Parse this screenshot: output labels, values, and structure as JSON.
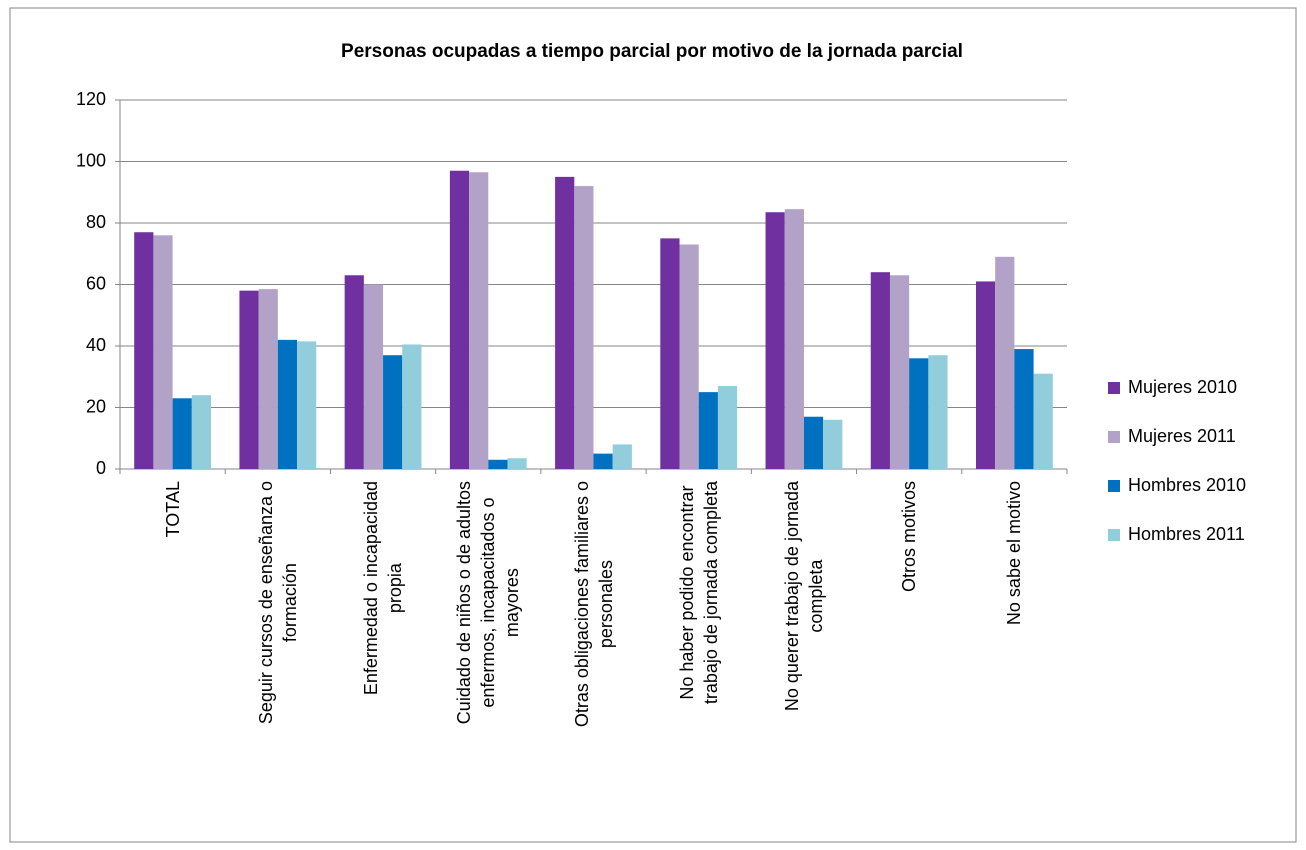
{
  "chart_data": {
    "type": "bar",
    "title": "Personas ocupadas a tiempo parcial por motivo de la jornada parcial",
    "categories": [
      "TOTAL",
      "Seguir cursos de enseñanza o\nformación",
      "Enfermedad o incapacidad\npropia",
      "Cuidado de niños o de adultos\nenfermos, incapacitados  o\nmayores",
      "Otras obligaciones familiares o\npersonales",
      "No haber podido encontrar\ntrabajo de jornada completa",
      "No querer trabajo de jornada\ncompleta",
      "Otros motivos",
      "No sabe el motivo"
    ],
    "series": [
      {
        "name": "Mujeres 2010",
        "color": "#7030a0",
        "values": [
          77,
          58,
          63,
          97,
          95,
          75,
          83.5,
          64,
          61
        ]
      },
      {
        "name": "Mujeres 2011",
        "color": "#b3a2c7",
        "values": [
          76,
          58.5,
          60,
          96.5,
          92,
          73,
          84.5,
          63,
          69
        ]
      },
      {
        "name": "Hombres 2010",
        "color": "#0070c0",
        "values": [
          23,
          42,
          37,
          3,
          5,
          25,
          17,
          36,
          39
        ]
      },
      {
        "name": "Hombres 2011",
        "color": "#92cddc",
        "values": [
          24,
          41.5,
          40.5,
          3.5,
          8,
          27,
          16,
          37,
          31
        ]
      }
    ],
    "ylim": [
      0,
      120
    ],
    "yticks": [
      0,
      20,
      40,
      60,
      80,
      100,
      120
    ],
    "grid": true,
    "legend": "right"
  }
}
